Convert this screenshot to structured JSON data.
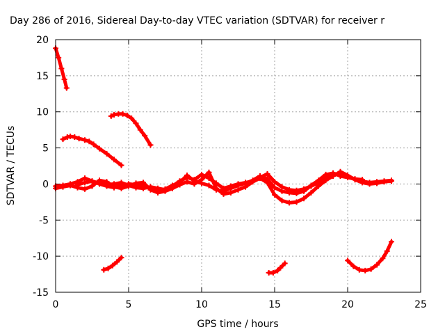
{
  "chart_data": {
    "type": "line",
    "title": "Day 286 of 2016, Sidereal Day-to-day VTEC variation (SDTVAR) for receiver r",
    "xlabel": "GPS time / hours",
    "ylabel": "SDTVAR / TECUs",
    "xlim": [
      0,
      25
    ],
    "ylim": [
      -15,
      20
    ],
    "xticks": [
      0,
      5,
      10,
      15,
      20,
      25
    ],
    "yticks": [
      -15,
      -10,
      -5,
      0,
      5,
      10,
      15,
      20
    ],
    "grid": true,
    "color": "#ff0000",
    "series": [
      {
        "x": [
          0.0,
          0.2,
          0.4,
          0.6,
          0.75
        ],
        "y": [
          18.8,
          17.5,
          16.0,
          14.5,
          13.3
        ]
      },
      {
        "x": [
          0.5,
          0.8,
          1.0,
          1.3,
          1.6,
          2.0,
          2.3,
          2.6,
          3.0,
          3.5,
          4.0,
          4.5
        ],
        "y": [
          6.2,
          6.5,
          6.6,
          6.5,
          6.3,
          6.1,
          5.9,
          5.5,
          4.9,
          4.2,
          3.4,
          2.6
        ]
      },
      {
        "x": [
          3.8,
          4.0,
          4.3,
          4.6,
          4.9,
          5.2,
          5.5,
          5.8,
          6.1,
          6.5
        ],
        "y": [
          9.4,
          9.6,
          9.7,
          9.7,
          9.5,
          9.1,
          8.4,
          7.5,
          6.7,
          5.4
        ]
      },
      {
        "x": [
          3.3,
          3.6,
          3.9,
          4.2,
          4.5
        ],
        "y": [
          -11.9,
          -11.7,
          -11.3,
          -10.8,
          -10.2
        ]
      },
      {
        "x": [
          14.6,
          14.9,
          15.2,
          15.4,
          15.7
        ],
        "y": [
          -12.3,
          -12.3,
          -12.0,
          -11.6,
          -11.0
        ]
      },
      {
        "x": [
          20.0,
          20.4,
          20.8,
          21.2,
          21.6,
          22.0,
          22.4,
          22.7,
          23.0
        ],
        "y": [
          -10.6,
          -11.4,
          -11.9,
          -12.0,
          -11.8,
          -11.2,
          -10.3,
          -9.3,
          -8.0
        ]
      },
      {
        "x": [
          0.0,
          0.5,
          1.0,
          1.5,
          2.0,
          2.5,
          3.0,
          3.5,
          4.0,
          4.5,
          5.0,
          5.5,
          6.0,
          6.5,
          7.0,
          7.5,
          8.0,
          8.5,
          9.0,
          9.5,
          10.0,
          10.5,
          11.0,
          11.5,
          12.0,
          12.5,
          13.0,
          13.5,
          14.0,
          14.5,
          15.0,
          15.5,
          16.0,
          16.5,
          17.0,
          17.5,
          18.0,
          18.5,
          19.0,
          19.5,
          20.0,
          20.5,
          21.0,
          21.5,
          22.0,
          22.5,
          23.0
        ],
        "y": [
          -0.3,
          -0.2,
          0.0,
          0.3,
          0.8,
          0.4,
          0.1,
          -0.1,
          0.0,
          0.2,
          -0.2,
          -0.5,
          -0.6,
          -0.4,
          -0.6,
          -0.8,
          -0.3,
          0.4,
          0.9,
          0.6,
          1.3,
          0.8,
          0.1,
          -0.6,
          -0.3,
          0.0,
          0.2,
          0.4,
          0.9,
          1.4,
          0.3,
          -0.4,
          -0.8,
          -0.9,
          -0.7,
          -0.3,
          0.2,
          0.8,
          1.5,
          1.2,
          1.0,
          0.7,
          0.4,
          0.2,
          0.3,
          0.4,
          0.5
        ]
      },
      {
        "x": [
          0.0,
          0.5,
          1.0,
          1.5,
          2.0,
          2.5,
          3.0,
          3.5,
          4.0,
          4.5,
          5.0,
          5.5,
          6.0,
          6.5,
          7.0,
          7.5,
          8.0,
          8.5,
          9.0,
          9.5,
          10.0,
          10.5,
          11.0,
          11.5,
          12.0,
          12.5,
          13.0,
          13.5,
          14.0,
          14.5,
          15.0,
          15.5,
          16.0,
          16.5,
          17.0,
          17.5,
          18.0,
          18.5,
          19.0,
          19.5,
          20.0,
          20.5,
          21.0,
          21.5,
          22.0,
          22.5,
          23.0
        ],
        "y": [
          -0.6,
          -0.4,
          -0.2,
          -0.5,
          -0.7,
          -0.3,
          0.5,
          0.3,
          -0.4,
          -0.6,
          -0.3,
          0.1,
          0.2,
          -0.8,
          -1.2,
          -1.0,
          -0.6,
          -0.1,
          0.3,
          0.0,
          0.6,
          1.6,
          -0.6,
          -1.4,
          -1.2,
          -0.8,
          -0.4,
          0.3,
          0.8,
          0.2,
          -1.5,
          -2.3,
          -2.6,
          -2.5,
          -2.0,
          -1.2,
          -0.3,
          0.5,
          1.1,
          1.7,
          1.2,
          0.6,
          0.2,
          0.0,
          0.1,
          0.3,
          0.4
        ]
      },
      {
        "x": [
          1.5,
          2.0,
          2.5,
          3.0,
          3.5,
          4.0,
          4.5,
          5.0,
          5.5,
          6.0,
          6.5,
          7.0,
          7.5,
          8.0,
          8.5,
          9.0,
          9.5,
          10.0,
          10.5,
          11.0,
          11.5,
          12.0,
          12.5,
          13.0,
          13.5,
          14.0,
          14.5,
          15.0,
          15.5,
          16.0,
          16.5,
          17.0,
          17.5,
          18.0,
          18.5,
          19.0,
          19.5,
          20.0,
          20.5,
          21.0
        ],
        "y": [
          -0.1,
          0.2,
          0.4,
          0.0,
          -0.3,
          -0.5,
          -0.2,
          0.0,
          -0.1,
          -0.3,
          -0.5,
          -0.9,
          -0.7,
          -0.2,
          0.2,
          1.2,
          0.4,
          0.1,
          -0.2,
          -0.8,
          -1.0,
          -0.6,
          -0.2,
          0.1,
          0.5,
          1.1,
          0.7,
          -0.5,
          -1.0,
          -1.2,
          -1.3,
          -1.0,
          -0.2,
          0.5,
          1.3,
          1.5,
          1.1,
          0.9,
          0.7,
          0.6
        ]
      }
    ]
  }
}
